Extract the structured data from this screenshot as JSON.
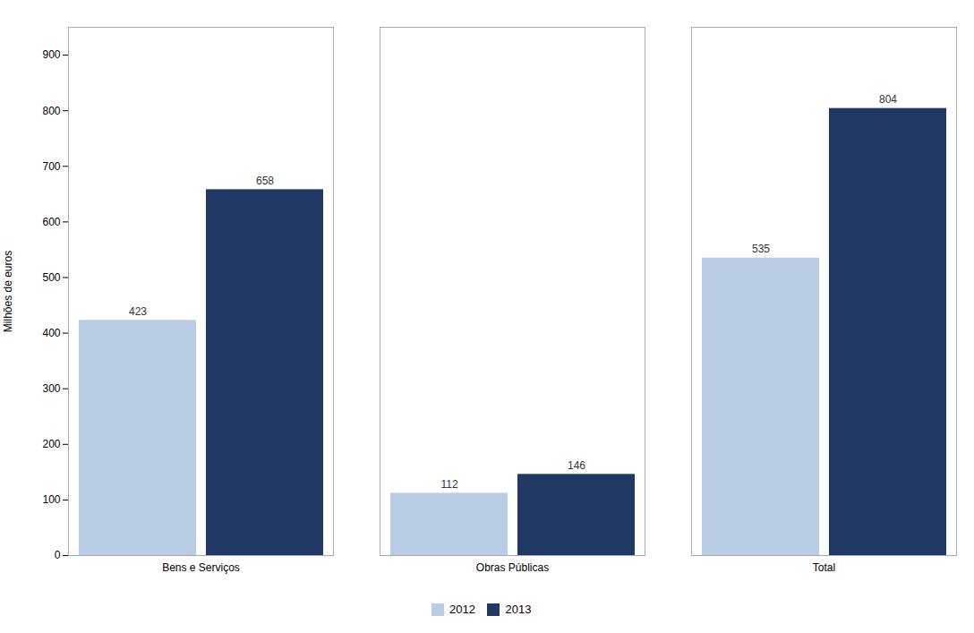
{
  "chart_data": {
    "type": "bar",
    "categories": [
      "Bens e Serviços",
      "Obras Públicas",
      "Total"
    ],
    "series": [
      {
        "name": "2012",
        "color": "#b8cce4",
        "values": [
          423,
          112,
          535
        ]
      },
      {
        "name": "2013",
        "color": "#1f3864",
        "values": [
          658,
          146,
          804
        ]
      }
    ],
    "ylabel": "Milhões de euros",
    "ylim": [
      0,
      950
    ],
    "yticks": [
      0,
      100,
      200,
      300,
      400,
      500,
      600,
      700,
      800,
      900
    ],
    "grid": false,
    "legend": "bottom",
    "data_labels": true
  }
}
